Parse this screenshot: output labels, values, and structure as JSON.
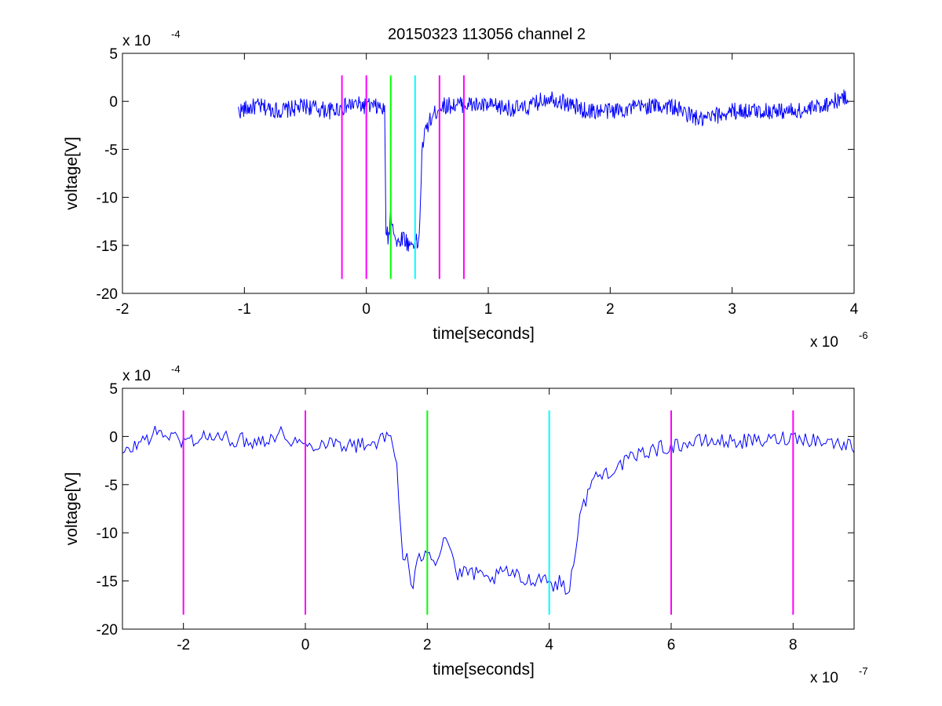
{
  "figure": {
    "title": "20150323 113056 channel 2"
  },
  "colors": {
    "signal": "#0000ff",
    "magenta_marker": "#ff00ff",
    "green_marker": "#00ff00",
    "cyan_marker": "#00ffff",
    "axes": "#000000"
  },
  "chart_data": [
    {
      "type": "line",
      "title": "20150323 113056 channel 2",
      "xlabel": "time[seconds]",
      "ylabel": "voltage[V]",
      "x_exponent_base": "x 10",
      "x_exponent_power": "-6",
      "y_exponent_base": "x 10",
      "y_exponent_power": "-4",
      "x_scale": 1e-06,
      "y_scale": 0.0001,
      "xlim": [
        -2e-06,
        4e-06
      ],
      "ylim": [
        -0.002,
        0.0005
      ],
      "xticks": [
        -2,
        -1,
        0,
        1,
        2,
        3,
        4
      ],
      "xtick_labels": [
        "-2",
        "-1",
        "0",
        "1",
        "2",
        "3",
        "4"
      ],
      "yticks": [
        -20,
        -15,
        -10,
        -5,
        0,
        5
      ],
      "ytick_labels": [
        "-20",
        "-15",
        "-10",
        "-5",
        "0",
        "5"
      ],
      "grid": false,
      "markers": [
        {
          "x": -2e-07,
          "y_range": [
            -0.00185,
            0.00027
          ],
          "color": "magenta"
        },
        {
          "x": 0,
          "y_range": [
            -0.00185,
            0.00027
          ],
          "color": "magenta"
        },
        {
          "x": 2e-07,
          "y_range": [
            -0.00185,
            0.00027
          ],
          "color": "green"
        },
        {
          "x": 4e-07,
          "y_range": [
            -0.00185,
            0.00027
          ],
          "color": "cyan"
        },
        {
          "x": 6e-07,
          "y_range": [
            -0.00185,
            0.00027
          ],
          "color": "magenta"
        },
        {
          "x": 8e-07,
          "y_range": [
            -0.00185,
            0.00027
          ],
          "color": "magenta"
        }
      ],
      "series": [
        {
          "x": [
            -1.05e-06,
            -9e-07,
            -7e-07,
            -5e-07,
            -3e-07,
            -1e-07,
            0,
            1e-07,
            1.5e-07,
            1.6e-07,
            1.8e-07,
            2e-07,
            2.5e-07,
            3e-07,
            3.5e-07,
            4e-07,
            4.3e-07,
            4.6e-07,
            5e-07,
            6e-07,
            8e-07,
            1e-06,
            1.3e-06,
            1.5e-06,
            1.8e-06,
            2e-06,
            2.3e-06,
            2.5e-06,
            2.75e-06,
            3e-06,
            3.3e-06,
            3.6e-06,
            3.95e-06
          ],
          "y": [
            -0.0001,
            -5e-05,
            -0.0001,
            -5e-05,
            -0.0001,
            -3e-05,
            -5e-05,
            -6e-05,
            -0.0001,
            -0.0013,
            -0.00145,
            -0.00115,
            -0.0015,
            -0.0014,
            -0.0015,
            -0.00145,
            -0.0015,
            -0.00045,
            -0.00025,
            -5e-05,
            -3e-05,
            -5e-05,
            -8e-05,
            5e-05,
            -0.0001,
            -0.0001,
            -5e-05,
            -5e-05,
            -0.0002,
            -0.0001,
            -0.0001,
            -0.0001,
            5e-05
          ]
        }
      ]
    },
    {
      "type": "line",
      "title": "",
      "xlabel": "time[seconds]",
      "ylabel": "voltage[V]",
      "x_exponent_base": "x 10",
      "x_exponent_power": "-7",
      "y_exponent_base": "x 10",
      "y_exponent_power": "-4",
      "x_scale": 1e-07,
      "y_scale": 0.0001,
      "xlim": [
        -3e-07,
        9e-07
      ],
      "ylim": [
        -0.002,
        0.0005
      ],
      "xticks": [
        -2,
        0,
        2,
        4,
        6,
        8
      ],
      "xtick_labels": [
        "-2",
        "0",
        "2",
        "4",
        "6",
        "8"
      ],
      "yticks": [
        -20,
        -15,
        -10,
        -5,
        0,
        5
      ],
      "ytick_labels": [
        "-20",
        "-15",
        "-10",
        "-5",
        "0",
        "5"
      ],
      "grid": false,
      "markers": [
        {
          "x": -2e-07,
          "y_range": [
            -0.00185,
            0.00027
          ],
          "color": "magenta"
        },
        {
          "x": 0,
          "y_range": [
            -0.00185,
            0.00027
          ],
          "color": "magenta"
        },
        {
          "x": 2e-07,
          "y_range": [
            -0.00185,
            0.00027
          ],
          "color": "green"
        },
        {
          "x": 4e-07,
          "y_range": [
            -0.00185,
            0.00027
          ],
          "color": "cyan"
        },
        {
          "x": 6e-07,
          "y_range": [
            -0.00185,
            0.00027
          ],
          "color": "magenta"
        },
        {
          "x": 8e-07,
          "y_range": [
            -0.00185,
            0.00027
          ],
          "color": "magenta"
        }
      ],
      "series": [
        {
          "x": [
            -3e-07,
            -2.7e-07,
            -2.4e-07,
            -2e-07,
            -1.6e-07,
            -1.2e-07,
            -8e-08,
            -4e-08,
            0,
            4e-08,
            8e-08,
            1.2e-07,
            1.4e-07,
            1.5e-07,
            1.55e-07,
            1.6e-07,
            1.65e-07,
            1.75e-07,
            1.85e-07,
            2e-07,
            2.15e-07,
            2.3e-07,
            2.5e-07,
            2.7e-07,
            3e-07,
            3.3e-07,
            3.6e-07,
            3.9e-07,
            4.1e-07,
            4.2e-07,
            4.3e-07,
            4.4e-07,
            4.5e-07,
            4.7e-07,
            5e-07,
            5.3e-07,
            5.6e-07,
            6e-07,
            6.5e-07,
            7e-07,
            7.5e-07,
            8e-07,
            8.5e-07,
            9e-07
          ],
          "y": [
            -0.0002,
            -5e-05,
            5e-05,
            -5e-05,
            0,
            -3e-05,
            -5e-05,
            3e-05,
            -0.0001,
            -5e-05,
            -0.0001,
            -5e-05,
            0,
            -0.0003,
            -0.0008,
            -0.0013,
            -0.0012,
            -0.0016,
            -0.0013,
            -0.00115,
            -0.0013,
            -0.001,
            -0.00145,
            -0.0014,
            -0.0015,
            -0.0014,
            -0.0015,
            -0.00145,
            -0.00155,
            -0.0015,
            -0.00165,
            -0.0013,
            -0.00085,
            -0.00045,
            -0.00035,
            -0.00025,
            -0.00015,
            -0.0001,
            -5e-05,
            -5e-05,
            -5e-05,
            0,
            -5e-05,
            -0.0001
          ]
        }
      ]
    }
  ]
}
